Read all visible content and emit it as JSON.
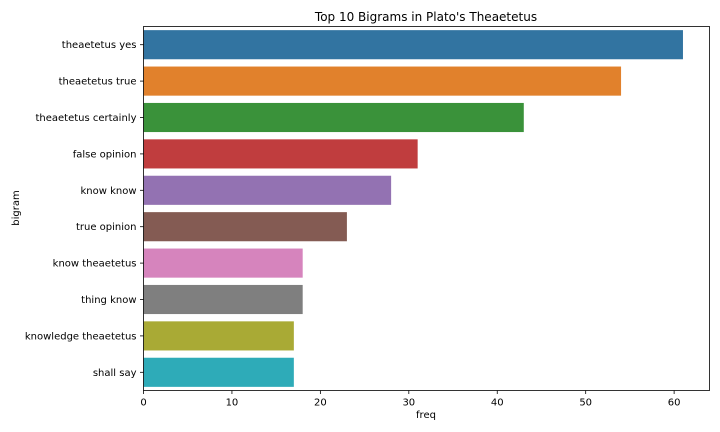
{
  "chart_data": {
    "type": "bar",
    "orientation": "horizontal",
    "title": "Top 10 Bigrams in Plato's Theaetetus",
    "xlabel": "freq",
    "ylabel": "bigram",
    "xlim": [
      0,
      64
    ],
    "x_ticks": [
      0,
      10,
      20,
      30,
      40,
      50,
      60
    ],
    "grid": false,
    "categories": [
      "theaetetus yes",
      "theaetetus true",
      "theaetetus certainly",
      "false opinion",
      "know know",
      "true opinion",
      "know theaetetus",
      "thing know",
      "knowledge theaetetus",
      "shall say"
    ],
    "values": [
      61,
      54,
      43,
      31,
      28,
      23,
      18,
      18,
      17,
      17
    ],
    "colors": [
      "#3274a1",
      "#e1812c",
      "#3a923a",
      "#c03d3e",
      "#9372b2",
      "#845b53",
      "#d684bd",
      "#7f7f7f",
      "#a9aa35",
      "#2eabb8"
    ]
  }
}
